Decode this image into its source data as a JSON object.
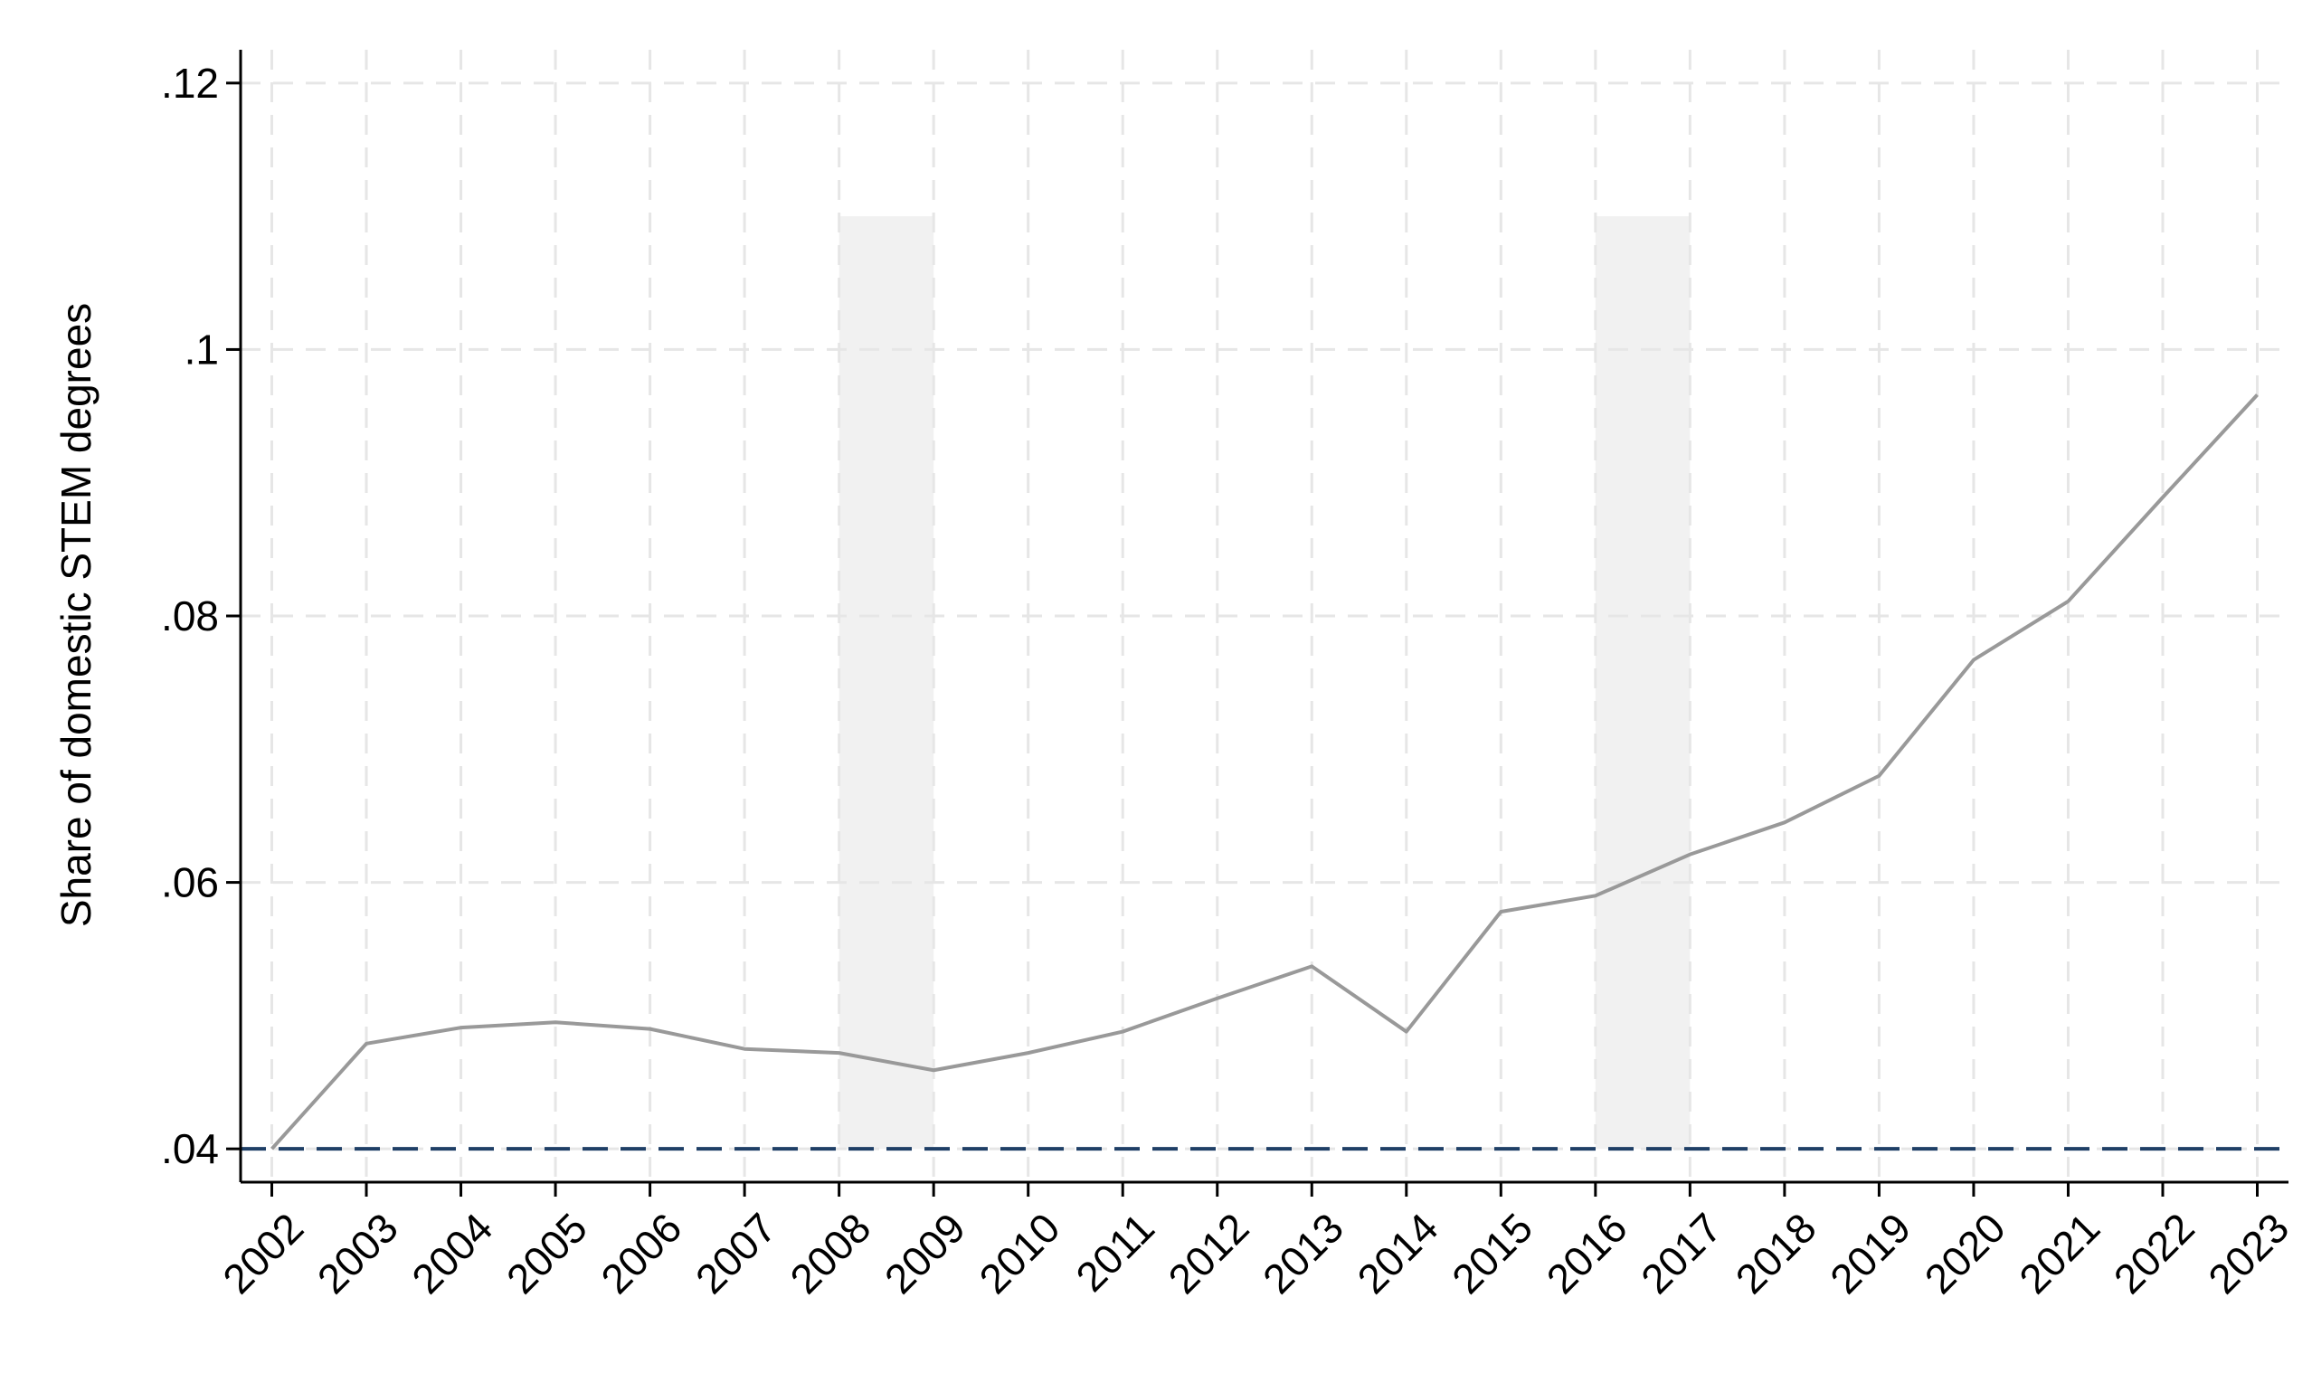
{
  "chart_data": {
    "type": "line",
    "title": "",
    "xlabel": "",
    "ylabel": "Share of domestic STEM degrees",
    "x": [
      2002,
      2003,
      2004,
      2005,
      2006,
      2007,
      2008,
      2009,
      2010,
      2011,
      2012,
      2013,
      2014,
      2015,
      2016,
      2017,
      2018,
      2019,
      2020,
      2021,
      2022,
      2023
    ],
    "x_tick_labels": [
      "2002",
      "2003",
      "2004",
      "2005",
      "2006",
      "2007",
      "2008",
      "2009",
      "2010",
      "2011",
      "2012",
      "2013",
      "2014",
      "2015",
      "2016",
      "2017",
      "2018",
      "2019",
      "2020",
      "2021",
      "2022",
      "2023"
    ],
    "series": [
      {
        "values": [
          0.04,
          0.0479,
          0.0491,
          0.0495,
          0.049,
          0.0475,
          0.0472,
          0.0459,
          0.0472,
          0.0488,
          0.0513,
          0.0537,
          0.0488,
          0.0578,
          0.059,
          0.0621,
          0.0645,
          0.068,
          0.0767,
          0.0811,
          0.0889,
          0.0966
        ],
        "color": "#999999"
      }
    ],
    "ylim": [
      0.0375,
      0.1225
    ],
    "xlim": [
      2001.67,
      2023.33
    ],
    "y_ticks": [
      0.04,
      0.06,
      0.08,
      0.1,
      0.12
    ],
    "y_tick_labels": [
      ".04",
      ".06",
      ".08",
      ".1",
      ".12"
    ],
    "shaded_periods": [
      {
        "start": 2008,
        "end": 2009,
        "y_top": 0.11
      },
      {
        "start": 2016,
        "end": 2017,
        "y_top": 0.11
      }
    ],
    "reference_line": {
      "y": 0.04,
      "style": "dashed",
      "color": "#1f3f66"
    },
    "grid": true,
    "grid_style": "dashed",
    "colors": {
      "line": "#999999",
      "grid": "#e6e6e6",
      "shade": "#f1f1f1",
      "reference": "#1f3f66",
      "axis": "#000000"
    }
  }
}
